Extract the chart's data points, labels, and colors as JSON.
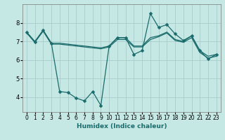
{
  "xlabel": "Humidex (Indice chaleur)",
  "bg_color": "#c5e8e5",
  "line_color": "#1a6b6b",
  "grid_color": "#a8cccc",
  "line1_x": [
    0,
    1,
    2,
    3,
    4,
    5,
    6,
    7,
    8,
    9,
    10,
    11,
    12,
    13,
    14,
    15,
    16,
    17,
    18,
    19,
    20,
    21,
    22,
    23
  ],
  "line1_y": [
    7.5,
    6.95,
    7.6,
    6.9,
    4.3,
    4.25,
    3.95,
    3.8,
    4.3,
    3.55,
    6.75,
    7.2,
    7.2,
    6.3,
    6.5,
    8.5,
    7.75,
    7.9,
    7.4,
    7.05,
    7.3,
    6.5,
    6.05,
    6.3
  ],
  "line2_x": [
    0,
    1,
    2,
    3,
    4,
    5,
    6,
    7,
    8,
    9,
    10,
    11,
    12,
    13,
    14,
    15,
    16,
    17,
    18,
    19,
    20,
    21,
    22,
    23
  ],
  "line2_y": [
    7.5,
    7.0,
    7.6,
    6.9,
    6.9,
    6.85,
    6.8,
    6.75,
    6.7,
    6.65,
    6.75,
    7.2,
    7.2,
    6.75,
    6.75,
    7.2,
    7.3,
    7.5,
    7.1,
    7.0,
    7.3,
    6.5,
    6.2,
    6.3
  ],
  "line3_x": [
    0,
    1,
    2,
    3,
    4,
    5,
    6,
    7,
    8,
    9,
    10,
    11,
    12,
    13,
    14,
    15,
    16,
    17,
    18,
    19,
    20,
    21,
    22,
    23
  ],
  "line3_y": [
    7.45,
    6.95,
    7.55,
    6.85,
    6.85,
    6.8,
    6.75,
    6.7,
    6.65,
    6.6,
    6.7,
    7.1,
    7.1,
    6.7,
    6.7,
    7.1,
    7.25,
    7.45,
    7.05,
    6.95,
    7.2,
    6.4,
    6.1,
    6.2
  ],
  "xlim": [
    -0.5,
    23.5
  ],
  "ylim": [
    3.2,
    9.0
  ],
  "yticks": [
    4,
    5,
    6,
    7,
    8
  ],
  "xticks": [
    0,
    1,
    2,
    3,
    4,
    5,
    6,
    7,
    8,
    9,
    10,
    11,
    12,
    13,
    14,
    15,
    16,
    17,
    18,
    19,
    20,
    21,
    22,
    23
  ],
  "markersize": 2.5,
  "linewidth": 0.9
}
